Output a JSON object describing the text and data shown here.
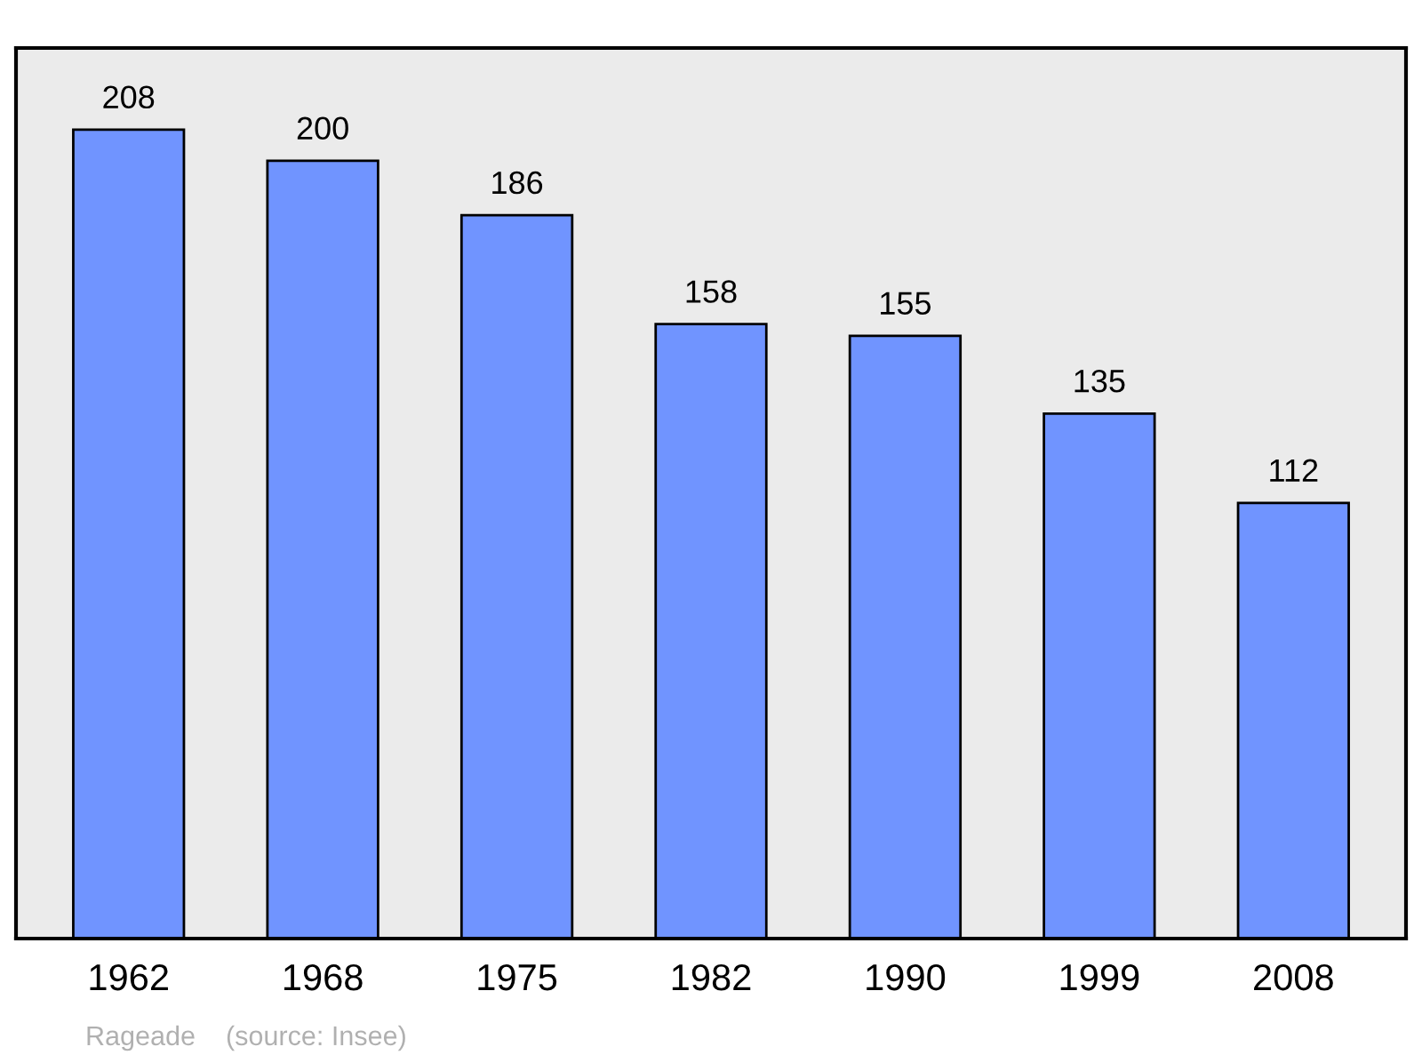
{
  "chart_data": {
    "type": "bar",
    "categories": [
      "1962",
      "1968",
      "1975",
      "1982",
      "1990",
      "1999",
      "2008"
    ],
    "values": [
      208,
      200,
      186,
      158,
      155,
      135,
      112
    ],
    "color": "#7094ff",
    "ylim": [
      0,
      229
    ],
    "tick_labels": "x",
    "data_labels": true,
    "annotations": [
      "Rageade    (source: Insee)"
    ]
  }
}
